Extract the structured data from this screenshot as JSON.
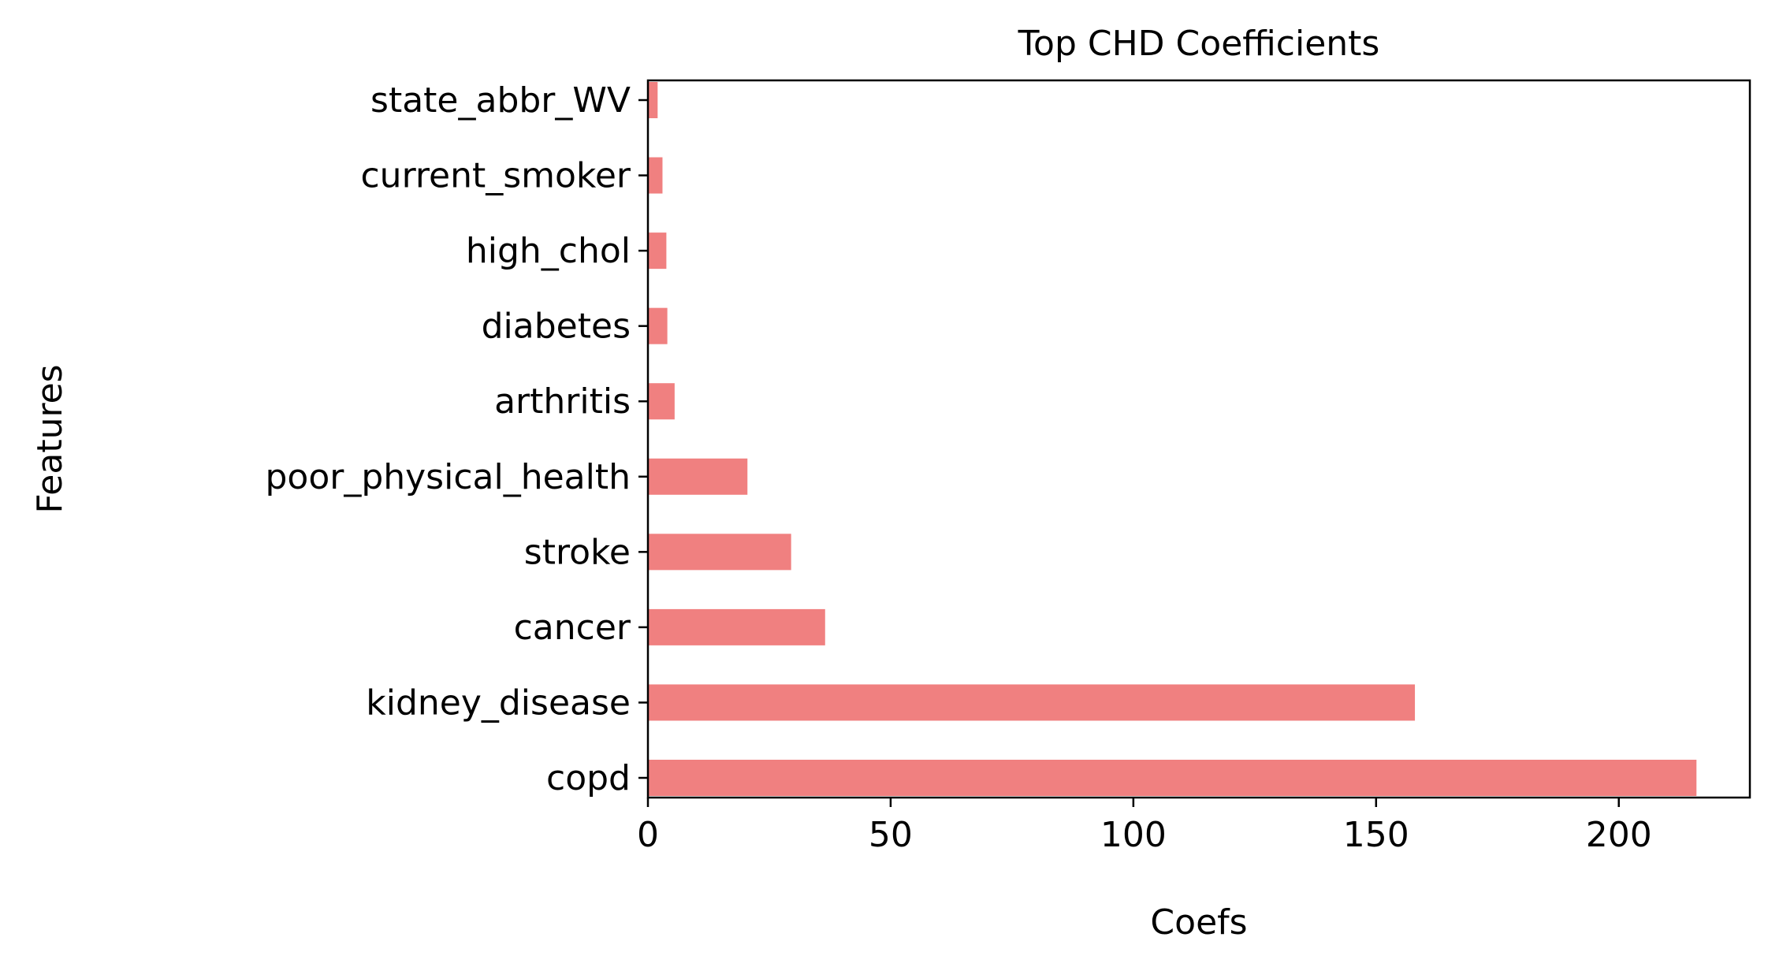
{
  "chart_data": {
    "type": "bar",
    "orientation": "horizontal",
    "title": "Top CHD Coefficients",
    "xlabel": "Coefs",
    "ylabel": "Features",
    "categories": [
      "copd",
      "kidney_disease",
      "cancer",
      "stroke",
      "poor_physical_health",
      "arthritis",
      "diabetes",
      "high_chol",
      "current_smoker",
      "state_abbr_WV"
    ],
    "values": [
      216,
      158,
      36.5,
      29.5,
      20.5,
      5.5,
      4,
      3.8,
      3,
      2
    ],
    "xlim": [
      0,
      227
    ],
    "xticks": [
      0,
      50,
      100,
      150,
      200
    ],
    "xtick_labels": [
      "0",
      "50",
      "100",
      "150",
      "200"
    ],
    "bar_color": "#f08080",
    "grid": false,
    "legend": "none"
  }
}
